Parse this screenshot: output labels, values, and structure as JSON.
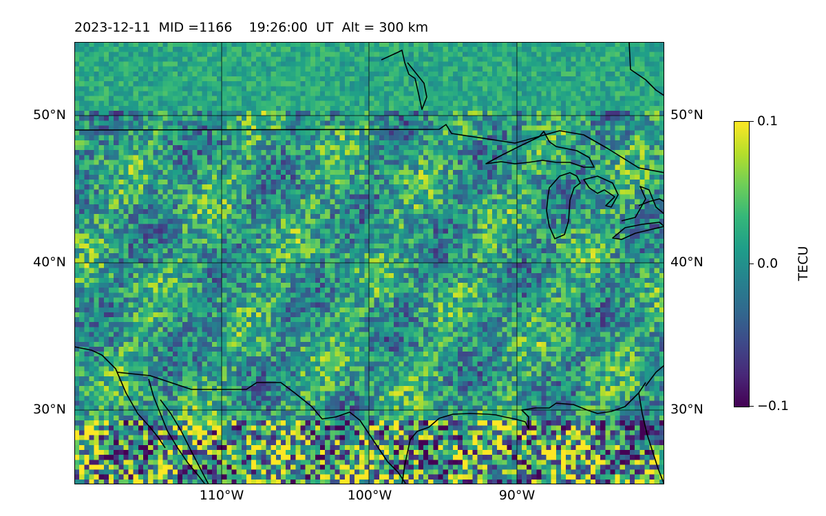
{
  "title": "2023-12-11  MID =1166    19:26:00  UT  Alt = 300 km",
  "lat_labels": [
    "50°N",
    "40°N",
    "30°N"
  ],
  "lon_labels": [
    "110°W",
    "100°W",
    "90°W"
  ],
  "colorbar": {
    "label": "TECU",
    "ticks": [
      "0.1",
      "0.0",
      "−0.1"
    ],
    "range": [
      -0.1,
      0.1
    ],
    "colormap": "viridis",
    "colors": [
      "#440154",
      "#482878",
      "#3e4989",
      "#31688e",
      "#26828e",
      "#1f9e89",
      "#35b779",
      "#6ece58",
      "#b5de2b",
      "#fde725"
    ]
  },
  "map": {
    "lon_range": [
      -120,
      -80
    ],
    "lat_range": [
      25,
      55
    ],
    "gridlines": true
  }
}
